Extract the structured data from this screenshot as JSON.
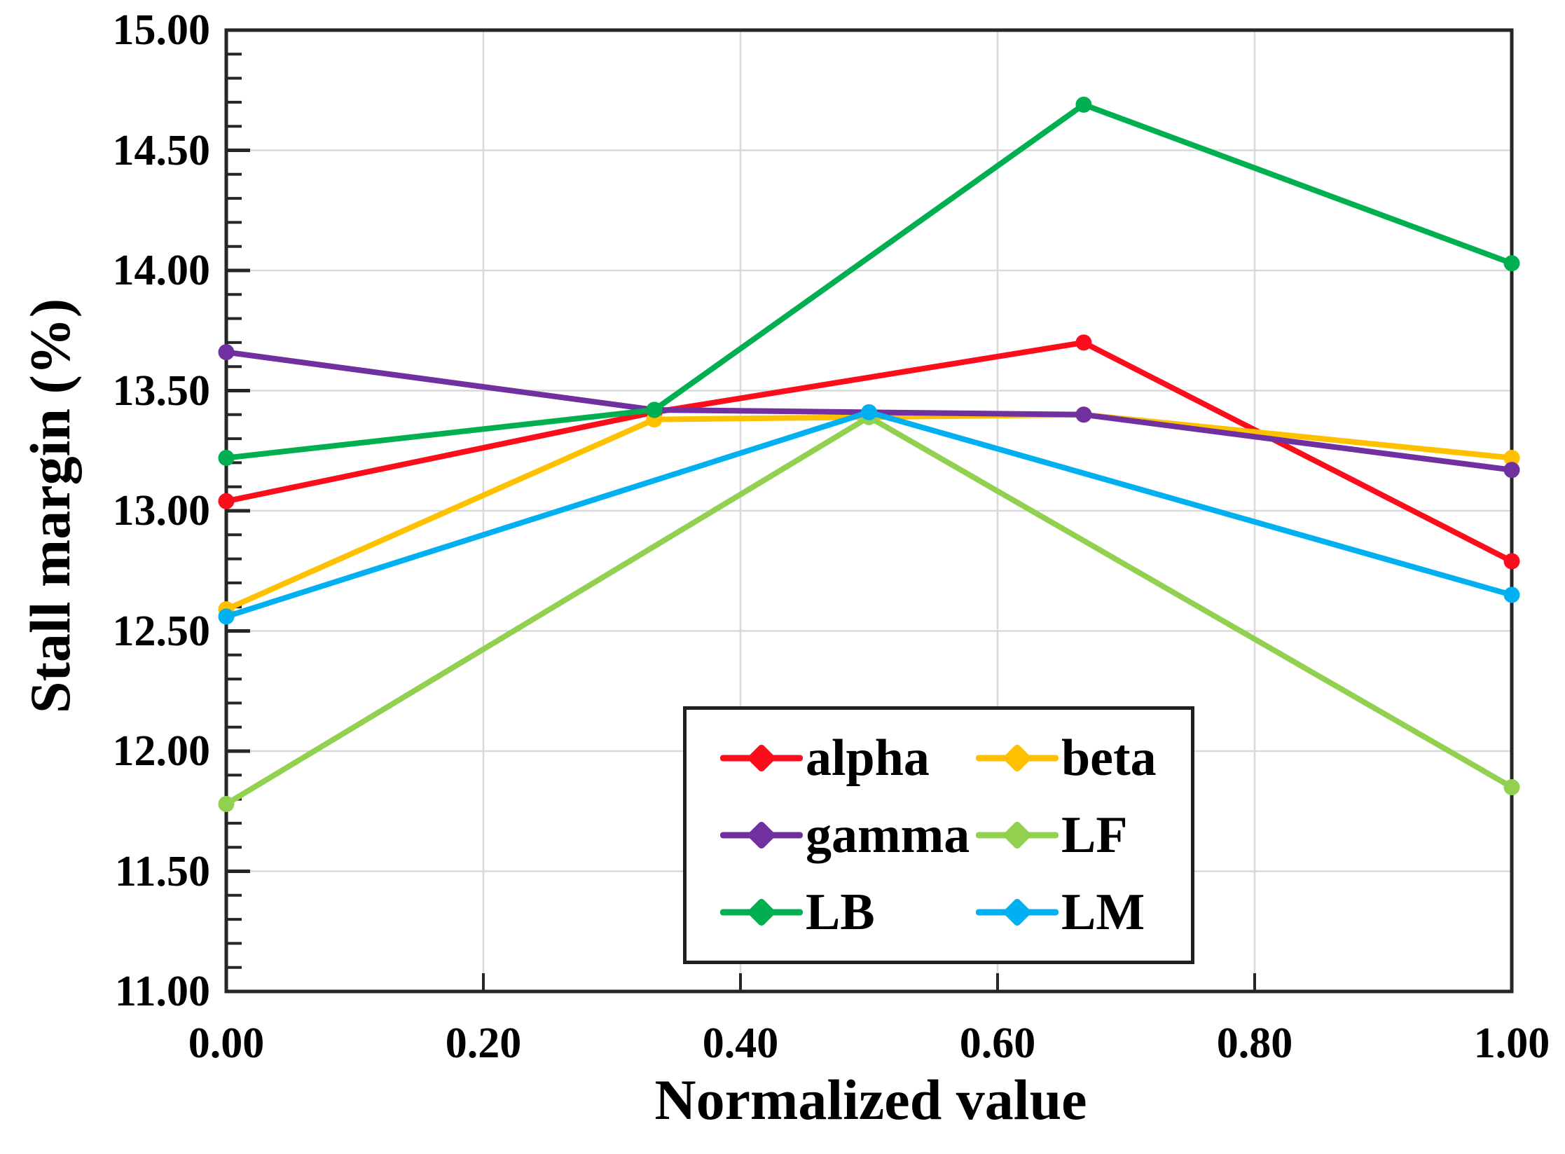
{
  "chart_data": {
    "type": "line",
    "title": "",
    "xlabel": "Normalized value",
    "ylabel": "Stall margin (%)",
    "xlim": [
      0,
      1
    ],
    "ylim": [
      11,
      15
    ],
    "grid": true,
    "legend_position": "inside-lower-center",
    "x_ticks": [
      0,
      0.2,
      0.4,
      0.6,
      0.8,
      1.0
    ],
    "x_tick_labels": [
      "0.00",
      "0.20",
      "0.40",
      "0.60",
      "0.80",
      "1.00"
    ],
    "y_major_step": 0.5,
    "y_minor_step": 0.1,
    "y_ticks": [
      11,
      11.5,
      12,
      12.5,
      13,
      13.5,
      14,
      14.5,
      15
    ],
    "y_tick_labels": [
      "11.00",
      "11.50",
      "12.00",
      "12.50",
      "13.00",
      "13.50",
      "14.00",
      "14.50",
      "15.00"
    ],
    "axis_color": "#262626",
    "gridline_color": "#d9d9d9",
    "series": [
      {
        "name": "alpha",
        "color": "#fb0d1b",
        "x": [
          0,
          0.333,
          0.667,
          1
        ],
        "y": [
          13.04,
          13.41,
          13.7,
          12.79
        ]
      },
      {
        "name": "beta",
        "color": "#ffc000",
        "x": [
          0,
          0.333,
          0.667,
          1
        ],
        "y": [
          12.59,
          13.38,
          13.4,
          13.22
        ]
      },
      {
        "name": "gamma",
        "color": "#7030a0",
        "x": [
          0,
          0.333,
          0.667,
          1
        ],
        "y": [
          13.66,
          13.42,
          13.4,
          13.17
        ]
      },
      {
        "name": "LF",
        "color": "#92d050",
        "x": [
          0,
          0.5,
          1
        ],
        "y": [
          11.78,
          13.39,
          11.85
        ]
      },
      {
        "name": "LB",
        "color": "#00b050",
        "x": [
          0,
          0.333,
          0.667,
          1
        ],
        "y": [
          13.22,
          13.42,
          14.69,
          14.03
        ]
      },
      {
        "name": "LM",
        "color": "#00b0f0",
        "x": [
          0,
          0.5,
          1
        ],
        "y": [
          12.56,
          13.41,
          12.65
        ]
      }
    ]
  }
}
